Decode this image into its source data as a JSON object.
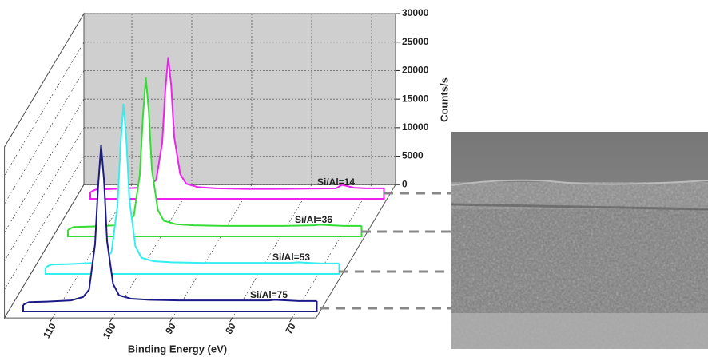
{
  "chart_data": {
    "type": "waterfall",
    "x_label": "Binding Energy (eV)",
    "y_label": "Counts/s",
    "xlim": [
      118,
      66
    ],
    "xticks": [
      110,
      100,
      90,
      80,
      70
    ],
    "ylim": [
      0,
      30000
    ],
    "yticks": [
      0,
      5000,
      10000,
      15000,
      20000,
      25000,
      30000
    ],
    "grid": true,
    "x": [
      116,
      115.5,
      115,
      112,
      110,
      108,
      106,
      105,
      104,
      103.5,
      103,
      102.5,
      102,
      101,
      100,
      98,
      95,
      90,
      85,
      80,
      75,
      74,
      72,
      70,
      67
    ],
    "series": [
      {
        "name": "Si/Al=14",
        "color": "#ee22ee",
        "values": [
          300,
          600,
          800,
          900,
          1000,
          1100,
          1500,
          2500,
          9000,
          18000,
          24000,
          19000,
          10000,
          3500,
          1800,
          1200,
          1000,
          900,
          900,
          950,
          1000,
          1600,
          1100,
          1000,
          1000
        ]
      },
      {
        "name": "Si/Al=36",
        "color": "#33dd33",
        "values": [
          300,
          600,
          800,
          900,
          1000,
          1100,
          1600,
          2800,
          10000,
          20000,
          27000,
          21000,
          11000,
          3800,
          1900,
          1300,
          1100,
          1000,
          1000,
          1000,
          1100,
          1200,
          1100,
          1000,
          1000
        ]
      },
      {
        "name": "Si/Al=53",
        "color": "#33eeee",
        "values": [
          300,
          600,
          800,
          900,
          1000,
          1100,
          1700,
          3000,
          11000,
          21500,
          29000,
          22500,
          12000,
          4000,
          2000,
          1400,
          1200,
          1100,
          1100,
          1100,
          1100,
          1200,
          1100,
          1000,
          1000
        ]
      },
      {
        "name": "Si/Al=75",
        "color": "#1a1a88",
        "values": [
          300,
          600,
          800,
          900,
          1000,
          1100,
          1700,
          3000,
          11000,
          21000,
          28300,
          22000,
          11500,
          4000,
          2000,
          1400,
          1200,
          1100,
          1100,
          1100,
          1100,
          1200,
          1100,
          1000,
          1000
        ]
      }
    ]
  }
}
